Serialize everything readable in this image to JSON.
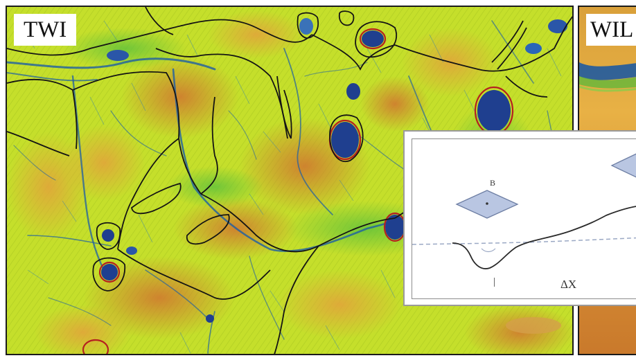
{
  "panels": {
    "left": {
      "label": "TWI"
    },
    "right": {
      "label": "WIL"
    }
  },
  "inset": {
    "cell_label": "B",
    "i_label": "|",
    "dx_label": "ΔX"
  },
  "colors": {
    "wet_blue": "#1f4f8f",
    "mid_green": "#b6dc26",
    "dry_orange": "#d08a32",
    "wetland_outline": "#b52020",
    "cell_fill": "#b9c6e2"
  },
  "icons": {
    "depression_cell": "diamond-cell-icon"
  }
}
